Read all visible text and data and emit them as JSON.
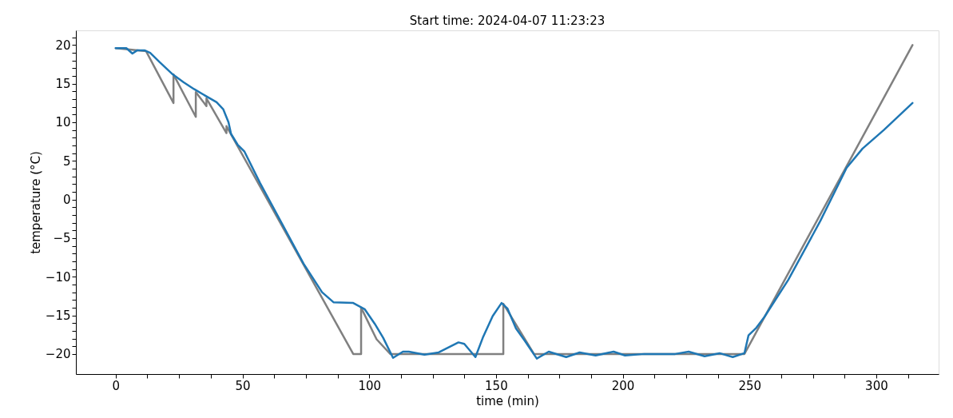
{
  "chart_data": {
    "type": "line",
    "title": "Start time: 2024-04-07 11:23:23",
    "xlabel": "time (min)",
    "ylabel": "temperature (°C)",
    "xlim": [
      -15.7,
      324.6
    ],
    "ylim": [
      -22.6,
      21.9
    ],
    "xticks": [
      0,
      {
        "value": 12.5,
        "label": null
      },
      {
        "value": 25,
        "label": null
      },
      {
        "value": 37.5,
        "label": null
      },
      50,
      {
        "value": 62.5,
        "label": null
      },
      {
        "value": 75,
        "label": null
      },
      {
        "value": 87.5,
        "label": null
      },
      100,
      {
        "value": 112.5,
        "label": null
      },
      {
        "value": 125,
        "label": null
      },
      {
        "value": 137.5,
        "label": null
      },
      150,
      {
        "value": 162.5,
        "label": null
      },
      {
        "value": 175,
        "label": null
      },
      {
        "value": 187.5,
        "label": null
      },
      200,
      {
        "value": 212.5,
        "label": null
      },
      {
        "value": 225,
        "label": null
      },
      {
        "value": 237.5,
        "label": null
      },
      250,
      {
        "value": 262.5,
        "label": null
      },
      {
        "value": 275,
        "label": null
      },
      {
        "value": 287.5,
        "label": null
      },
      300,
      {
        "value": 312.5,
        "label": null
      }
    ],
    "yticks": [
      -20,
      {
        "value": -19,
        "label": null
      },
      {
        "value": -18,
        "label": null
      },
      {
        "value": -17,
        "label": null
      },
      {
        "value": -16,
        "label": null
      },
      -15,
      {
        "value": -14,
        "label": null
      },
      {
        "value": -13,
        "label": null
      },
      {
        "value": -12,
        "label": null
      },
      {
        "value": -11,
        "label": null
      },
      -10,
      {
        "value": -9,
        "label": null
      },
      {
        "value": -8,
        "label": null
      },
      {
        "value": -7,
        "label": null
      },
      {
        "value": -6,
        "label": null
      },
      -5,
      {
        "value": -4,
        "label": null
      },
      {
        "value": -3,
        "label": null
      },
      {
        "value": -2,
        "label": null
      },
      {
        "value": -1,
        "label": null
      },
      0,
      {
        "value": 1,
        "label": null
      },
      {
        "value": 2,
        "label": null
      },
      {
        "value": 3,
        "label": null
      },
      {
        "value": 4,
        "label": null
      },
      5,
      {
        "value": 6,
        "label": null
      },
      {
        "value": 7,
        "label": null
      },
      {
        "value": 8,
        "label": null
      },
      {
        "value": 9,
        "label": null
      },
      10,
      {
        "value": 11,
        "label": null
      },
      {
        "value": 12,
        "label": null
      },
      {
        "value": 13,
        "label": null
      },
      {
        "value": 14,
        "label": null
      },
      15,
      {
        "value": 16,
        "label": null
      },
      {
        "value": 17,
        "label": null
      },
      {
        "value": 18,
        "label": null
      },
      {
        "value": 19,
        "label": null
      },
      20,
      {
        "value": 21,
        "label": null
      }
    ],
    "grid": false,
    "legend": false,
    "marker": "none",
    "line_style": "solid",
    "series": [
      {
        "color": "#808080",
        "x": [
          0,
          12.0,
          22.8,
          22.8,
          31.6,
          31.6,
          35.8,
          35.8,
          43.7,
          43.7,
          93.7,
          96.8,
          96.8,
          102.9,
          108.3,
          152.9,
          152.9,
          165.0,
          248.0,
          314.3
        ],
        "values": [
          19.6,
          19.2,
          12.5,
          16.2,
          10.7,
          13.9,
          12.1,
          13.1,
          8.6,
          9.5,
          -20.0,
          -20.0,
          -14.0,
          -18.1,
          -20.0,
          -20.0,
          -13.5,
          -20.0,
          -20.0,
          20.0
        ]
      },
      {
        "color": "#1f77b4",
        "x": [
          0,
          4.2,
          6.6,
          8.4,
          11.5,
          13.6,
          17.3,
          22.5,
          26.7,
          30.9,
          36.1,
          39.8,
          42.4,
          44.5,
          45.5,
          48.1,
          50.8,
          57.0,
          74.1,
          81.4,
          85.9,
          93.7,
          98.2,
          102.2,
          105.5,
          109.4,
          113.3,
          115.6,
          121.8,
          127.4,
          135.2,
          137.5,
          141.9,
          144.8,
          148.7,
          152.2,
          154.5,
          157.9,
          161.4,
          166.1,
          170.8,
          177.7,
          183.0,
          189.3,
          196.4,
          200.9,
          208.5,
          214.9,
          220.7,
          226.0,
          232.3,
          238.2,
          243.4,
          248.0,
          249.6,
          252.7,
          255.9,
          265.3,
          277.9,
          288.3,
          294.6,
          303.0,
          314.3
        ],
        "values": [
          19.6,
          19.6,
          18.9,
          19.3,
          19.3,
          19.0,
          17.8,
          16.2,
          15.2,
          14.3,
          13.3,
          12.6,
          11.7,
          10.0,
          8.5,
          7.1,
          6.2,
          2.1,
          -8.3,
          -12.0,
          -13.3,
          -13.4,
          -14.2,
          -16.1,
          -17.9,
          -20.5,
          -19.7,
          -19.7,
          -20.1,
          -19.8,
          -18.5,
          -18.7,
          -20.4,
          -17.9,
          -15.1,
          -13.4,
          -14.1,
          -16.7,
          -18.3,
          -20.6,
          -19.7,
          -20.4,
          -19.8,
          -20.2,
          -19.7,
          -20.2,
          -20.0,
          -20.0,
          -20.0,
          -19.7,
          -20.3,
          -19.9,
          -20.4,
          -19.9,
          -17.6,
          -16.6,
          -15.2,
          -10.4,
          -2.8,
          4.1,
          6.6,
          9.0,
          12.5
        ]
      }
    ]
  }
}
